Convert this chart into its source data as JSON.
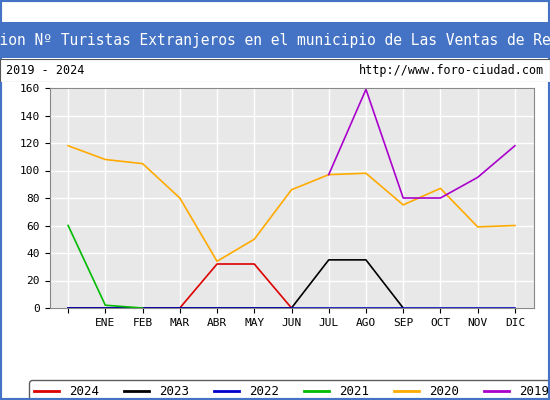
{
  "title": "Evolucion Nº Turistas Extranjeros en el municipio de Las Ventas de Retamosa",
  "subtitle_left": "2019 - 2024",
  "subtitle_right": "http://www.foro-ciudad.com",
  "x_labels": [
    "",
    "ENE",
    "FEB",
    "MAR",
    "ABR",
    "MAY",
    "JUN",
    "JUL",
    "AGO",
    "SEP",
    "OCT",
    "NOV",
    "DIC"
  ],
  "ylim": [
    0,
    160
  ],
  "yticks": [
    0,
    20,
    40,
    60,
    80,
    100,
    120,
    140,
    160
  ],
  "series": {
    "2024": {
      "color": "#dd0000",
      "values": [
        0,
        0,
        0,
        0,
        32,
        32,
        0,
        null,
        null,
        null,
        null,
        null,
        null
      ]
    },
    "2023": {
      "color": "#000000",
      "values": [
        0,
        0,
        0,
        0,
        0,
        0,
        0,
        35,
        35,
        0,
        null,
        null,
        null
      ]
    },
    "2022": {
      "color": "#0000cc",
      "values": [
        0,
        0,
        0,
        0,
        0,
        0,
        0,
        0,
        0,
        0,
        0,
        0,
        0
      ]
    },
    "2021": {
      "color": "#00bb00",
      "values": [
        60,
        2,
        0,
        null,
        null,
        null,
        null,
        null,
        null,
        null,
        null,
        null,
        null
      ]
    },
    "2020": {
      "color": "#ffaa00",
      "values": [
        118,
        108,
        105,
        80,
        34,
        50,
        86,
        97,
        98,
        75,
        87,
        59,
        60
      ]
    },
    "2019": {
      "color": "#aa00cc",
      "values": [
        null,
        null,
        null,
        null,
        null,
        null,
        null,
        97,
        159,
        80,
        80,
        95,
        118
      ]
    }
  },
  "title_bg_color": "#4472c4",
  "title_text_color": "#ffffff",
  "plot_bg_color": "#e8e8e8",
  "grid_color": "#ffffff",
  "outer_border_color": "#4472c4",
  "title_fontsize": 10.5,
  "subtitle_fontsize": 8.5,
  "tick_fontsize": 8,
  "legend_fontsize": 9
}
